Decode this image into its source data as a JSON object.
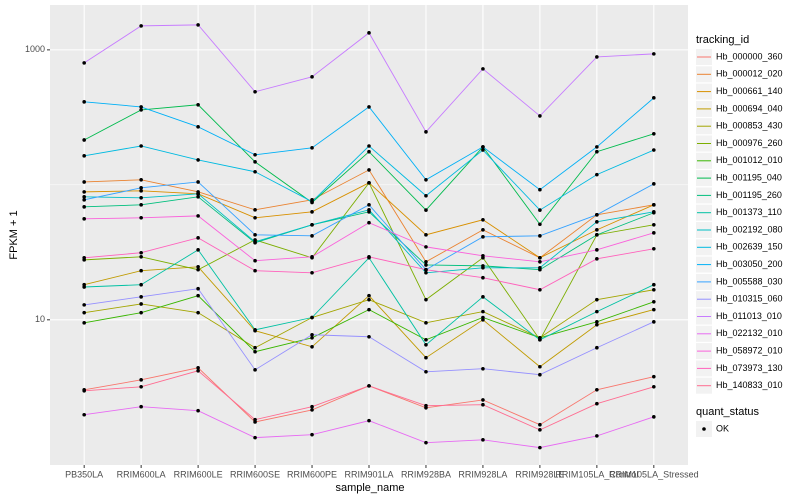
{
  "chart_data": {
    "type": "line",
    "log_scale": true,
    "grid": true,
    "legend_position": "right",
    "x_label": "sample_name",
    "y_label": "FPKM + 1",
    "legend_title": "tracking_id",
    "status_legend": {
      "title": "quant_status",
      "labels": [
        "OK"
      ],
      "color": "#000000"
    },
    "categories": [
      "PB350LA",
      "RRIM600LA",
      "RRIM600LE",
      "RRIM600SE",
      "RRIM600PE",
      "RRIM901LA",
      "RRIM928BA",
      "RRIM928LA",
      "RRIM928LE",
      "RRIM105LA_Control",
      "RRIM105LA_Stressed"
    ],
    "ylim": [
      0.84,
      2150
    ],
    "yticks": [
      10,
      1000
    ],
    "series": [
      {
        "name": "Hb_000000_360",
        "color": "#F8766D",
        "values": [
          3.03,
          3.59,
          4.41,
          1.75,
          2.15,
          3.24,
          2.23,
          2.55,
          1.67,
          3.03,
          3.79
        ]
      },
      {
        "name": "Hb_000012_020",
        "color": "#EA8331",
        "values": [
          105,
          109,
          88.7,
          65.3,
          77.4,
          129,
          26.9,
          46.4,
          28.8,
          60.0,
          71.1
        ]
      },
      {
        "name": "Hb_000661_140",
        "color": "#D89000",
        "values": [
          88.7,
          90.3,
          85.8,
          57.0,
          63.1,
          103.5,
          42.6,
          55.1,
          28.8,
          46.4,
          71.1
        ]
      },
      {
        "name": "Hb_000694_040",
        "color": "#C09B00",
        "values": [
          18.2,
          23.1,
          24.7,
          8.3,
          6.31,
          15.1,
          5.24,
          10,
          4.49,
          9.19,
          11.9
        ]
      },
      {
        "name": "Hb_000853_430",
        "color": "#A3A500",
        "values": [
          11.3,
          13.1,
          11.3,
          6.21,
          10.4,
          14.1,
          9.5,
          11.5,
          7.36,
          14.1,
          16.7
        ]
      },
      {
        "name": "Hb_000976_260",
        "color": "#7CAE00",
        "values": [
          27.8,
          29.3,
          23.5,
          39.1,
          28.8,
          103.5,
          14.1,
          28.8,
          7.11,
          42.6,
          50.6
        ]
      },
      {
        "name": "Hb_001012_010",
        "color": "#39B600",
        "values": [
          9.5,
          11.3,
          15.1,
          5.8,
          7.36,
          11.9,
          7.11,
          10.4,
          7.36,
          9.66,
          13.6
        ]
      },
      {
        "name": "Hb_001195_040",
        "color": "#00BB4E",
        "values": [
          215,
          359,
          392,
          148,
          74,
          176,
          65,
          191,
          51,
          176,
          239
        ]
      },
      {
        "name": "Hb_001195_260",
        "color": "#00BF7D",
        "values": [
          68.7,
          71.1,
          81.5,
          37.2,
          50.6,
          63.1,
          25.5,
          25.1,
          23.5,
          42.6,
          62.1
        ]
      },
      {
        "name": "Hb_001373_110",
        "color": "#00C1A3",
        "values": [
          17.5,
          18.2,
          33.0,
          8.43,
          10.4,
          28.8,
          6.53,
          14.8,
          7.11,
          11.5,
          18.2
        ]
      },
      {
        "name": "Hb_002192_080",
        "color": "#00BFC4",
        "values": [
          81.5,
          80.2,
          85.8,
          37.8,
          50.6,
          65.3,
          22.3,
          24.3,
          24.3,
          53.2,
          63.1
        ]
      },
      {
        "name": "Hb_002639_150",
        "color": "#00BAE0",
        "values": [
          164,
          194,
          153,
          125,
          75,
          194,
          83,
          181,
          65,
          119,
          181
        ]
      },
      {
        "name": "Hb_003050_200",
        "color": "#00B0F6",
        "values": [
          412,
          378,
          269,
          167,
          188,
          378,
          109,
          191,
          92,
          191,
          441
        ]
      },
      {
        "name": "Hb_005588_030",
        "color": "#35A2FF",
        "values": [
          77.4,
          95.0,
          105,
          42.6,
          41.9,
          71.1,
          23.5,
          41.2,
          41.9,
          60.0,
          101.7
        ]
      },
      {
        "name": "Hb_010315_060",
        "color": "#9590FF",
        "values": [
          12.9,
          14.8,
          17.0,
          4.26,
          7.75,
          7.49,
          4.12,
          4.34,
          3.92,
          6.21,
          9.66
        ]
      },
      {
        "name": "Hb_011013_010",
        "color": "#C77CFF",
        "values": [
          801,
          1506,
          1532,
          489,
          631,
          1337,
          247,
          723,
          324,
          887,
          934
        ]
      },
      {
        "name": "Hb_022132_010",
        "color": "#E76BF3",
        "values": [
          1.98,
          2.27,
          2.12,
          1.34,
          1.41,
          1.79,
          1.23,
          1.29,
          1.13,
          1.38,
          1.91
        ]
      },
      {
        "name": "Hb_058972_010",
        "color": "#FA62DB",
        "values": [
          56.0,
          57.0,
          58.9,
          27.4,
          29.3,
          52.4,
          34.7,
          29.8,
          26.9,
          33.0,
          44.1
        ]
      },
      {
        "name": "Hb_073973_130",
        "color": "#FF62BC",
        "values": [
          28.8,
          31.4,
          40.5,
          23.1,
          22.3,
          29.3,
          23.5,
          20.5,
          16.7,
          28.3,
          33.6
        ]
      },
      {
        "name": "Hb_140833_010",
        "color": "#FF6C91",
        "values": [
          2.98,
          3.19,
          4.19,
          1.82,
          2.27,
          3.24,
          2.31,
          2.35,
          1.53,
          2.39,
          3.19
        ]
      }
    ]
  }
}
